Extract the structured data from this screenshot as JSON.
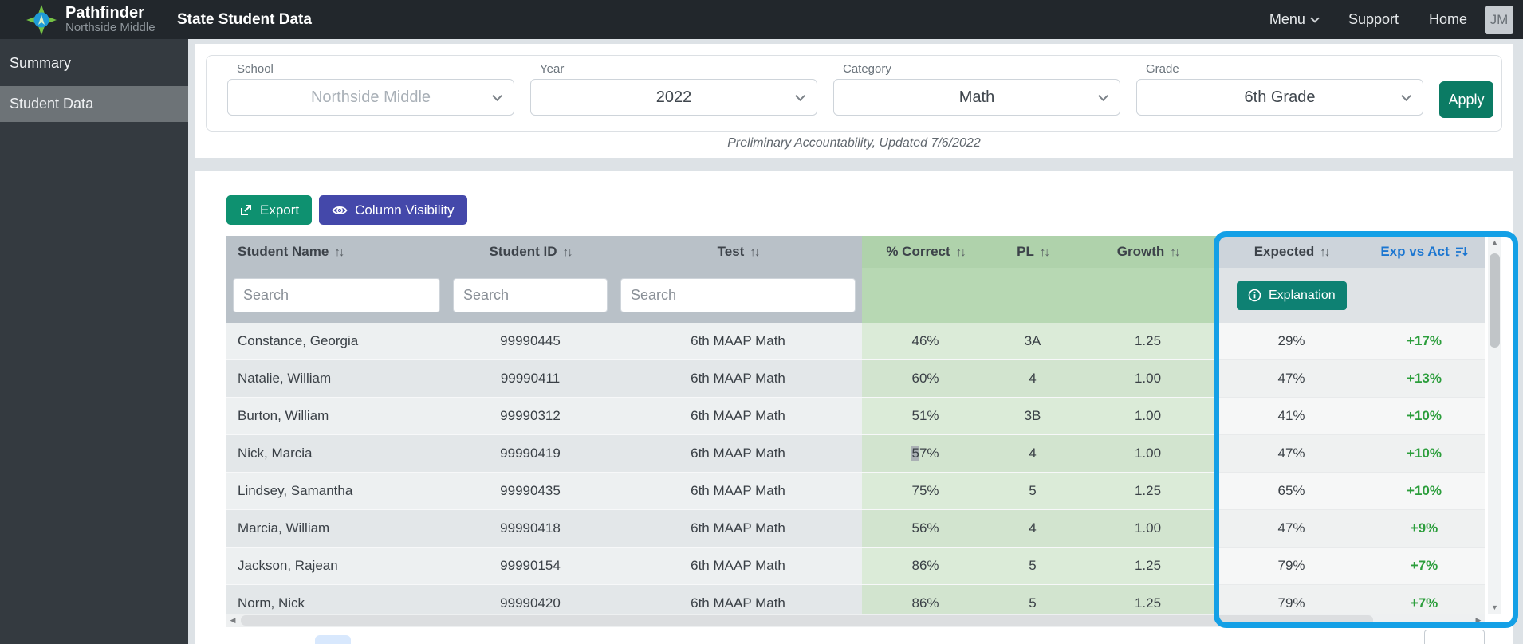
{
  "header": {
    "logo_title": "Pathfinder",
    "logo_subtitle": "Northside Middle",
    "page_title": "State Student Data",
    "nav": [
      {
        "label": "Menu"
      },
      {
        "label": "Support"
      },
      {
        "label": "Home"
      }
    ],
    "avatar_initials": "JM"
  },
  "sidebar": {
    "items": [
      {
        "label": "Summary",
        "active": false
      },
      {
        "label": "Student Data",
        "active": true
      }
    ]
  },
  "filters": {
    "fields": [
      {
        "label": "School",
        "value": "Northside Middle",
        "disabled": true
      },
      {
        "label": "Year",
        "value": "2022"
      },
      {
        "label": "Category",
        "value": "Math"
      },
      {
        "label": "Grade",
        "value": "6th Grade"
      }
    ],
    "apply_label": "Apply",
    "note": "Preliminary Accountability, Updated 7/6/2022"
  },
  "toolbar": {
    "export_label": "Export",
    "column_visibility_label": "Column Visibility"
  },
  "table": {
    "sort_icon": "↑↓",
    "search_placeholder": "Search",
    "explanation_label": "Explanation",
    "columns": [
      {
        "label": "Student Name"
      },
      {
        "label": "Student ID"
      },
      {
        "label": "Test"
      },
      {
        "label": "% Correct"
      },
      {
        "label": "PL"
      },
      {
        "label": "Growth"
      },
      {
        "label": "Expected"
      },
      {
        "label": "Exp vs Act"
      }
    ],
    "rows": [
      {
        "name": "Constance, Georgia",
        "id": "99990445",
        "test": "6th MAAP Math",
        "correct": "46%",
        "pl": "3A",
        "growth": "1.25",
        "expected": "29%",
        "exp_vs_act": "+17%"
      },
      {
        "name": "Natalie, William",
        "id": "99990411",
        "test": "6th MAAP Math",
        "correct": "60%",
        "pl": "4",
        "growth": "1.00",
        "expected": "47%",
        "exp_vs_act": "+13%"
      },
      {
        "name": "Burton, William",
        "id": "99990312",
        "test": "6th MAAP Math",
        "correct": "51%",
        "pl": "3B",
        "growth": "1.00",
        "expected": "41%",
        "exp_vs_act": "+10%"
      },
      {
        "name": "Nick, Marcia",
        "id": "99990419",
        "test": "6th MAAP Math",
        "correct": "57%",
        "pl": "4",
        "growth": "1.00",
        "expected": "47%",
        "exp_vs_act": "+10%",
        "selected": true
      },
      {
        "name": "Lindsey, Samantha",
        "id": "99990435",
        "test": "6th MAAP Math",
        "correct": "75%",
        "pl": "5",
        "growth": "1.25",
        "expected": "65%",
        "exp_vs_act": "+10%"
      },
      {
        "name": "Marcia, William",
        "id": "99990418",
        "test": "6th MAAP Math",
        "correct": "56%",
        "pl": "4",
        "growth": "1.00",
        "expected": "47%",
        "exp_vs_act": "+9%"
      },
      {
        "name": "Jackson, Rajean",
        "id": "99990154",
        "test": "6th MAAP Math",
        "correct": "86%",
        "pl": "5",
        "growth": "1.25",
        "expected": "79%",
        "exp_vs_act": "+7%"
      },
      {
        "name": "Norm, Nick",
        "id": "99990420",
        "test": "6th MAAP Math",
        "correct": "86%",
        "pl": "5",
        "growth": "1.25",
        "expected": "79%",
        "exp_vs_act": "+7%"
      }
    ]
  },
  "colors": {
    "topbar": "#22272c",
    "sidebar": "#343a40",
    "export_button": "#0e9170",
    "apply_button": "#0b7b64",
    "column_visibility_button": "#4448aa",
    "explanation_button": "#0e8173",
    "header_gray": "#b9c1c8",
    "header_green": "#afd2ab",
    "highlight_ring": "#14a0e6",
    "positive_delta": "#2c9e3c",
    "sorted_column_link": "#1b76d1"
  }
}
